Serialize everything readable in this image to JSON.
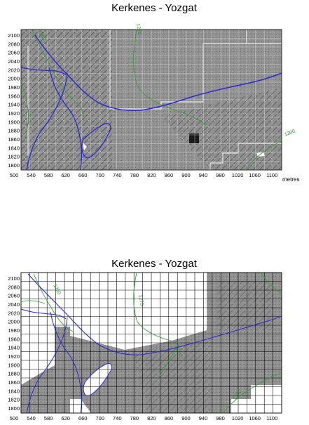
{
  "maps": [
    {
      "title": "Kerkenes - Yozgat",
      "x_ticks": [
        "500",
        "540",
        "580",
        "620",
        "660",
        "700",
        "740",
        "780",
        "820",
        "860",
        "900",
        "940",
        "980",
        "1020",
        "1060",
        "1100"
      ],
      "x_unit": "metres",
      "y_ticks": [
        "2100",
        "2080",
        "2060",
        "2040",
        "2020",
        "2000",
        "1980",
        "1960",
        "1940",
        "1920",
        "1900",
        "1880",
        "1860",
        "1840",
        "1820",
        "1800"
      ],
      "contour_labels": [
        "1250",
        "1275",
        "1300"
      ]
    },
    {
      "title": "Kerkenes - Yozgat",
      "x_ticks": [
        "500",
        "540",
        "580",
        "620",
        "660",
        "700",
        "740",
        "780",
        "820",
        "860",
        "900",
        "940",
        "980",
        "1020",
        "1060",
        "1100"
      ],
      "x_unit": "metres",
      "y_ticks": [
        "2100",
        "2080",
        "2060",
        "2040",
        "2020",
        "2000",
        "1980",
        "1960",
        "1940",
        "1920",
        "1900",
        "1880",
        "1860",
        "1840",
        "1820",
        "1800"
      ],
      "contour_labels": [
        "1250",
        "1275",
        "1275",
        "1300"
      ]
    }
  ],
  "colors": {
    "road": "#2a2ad0",
    "contour": "#3c9a3c",
    "survey_grey": "#8c8c8c",
    "grid_light": "#dadada",
    "grid_dark": "#000000"
  }
}
